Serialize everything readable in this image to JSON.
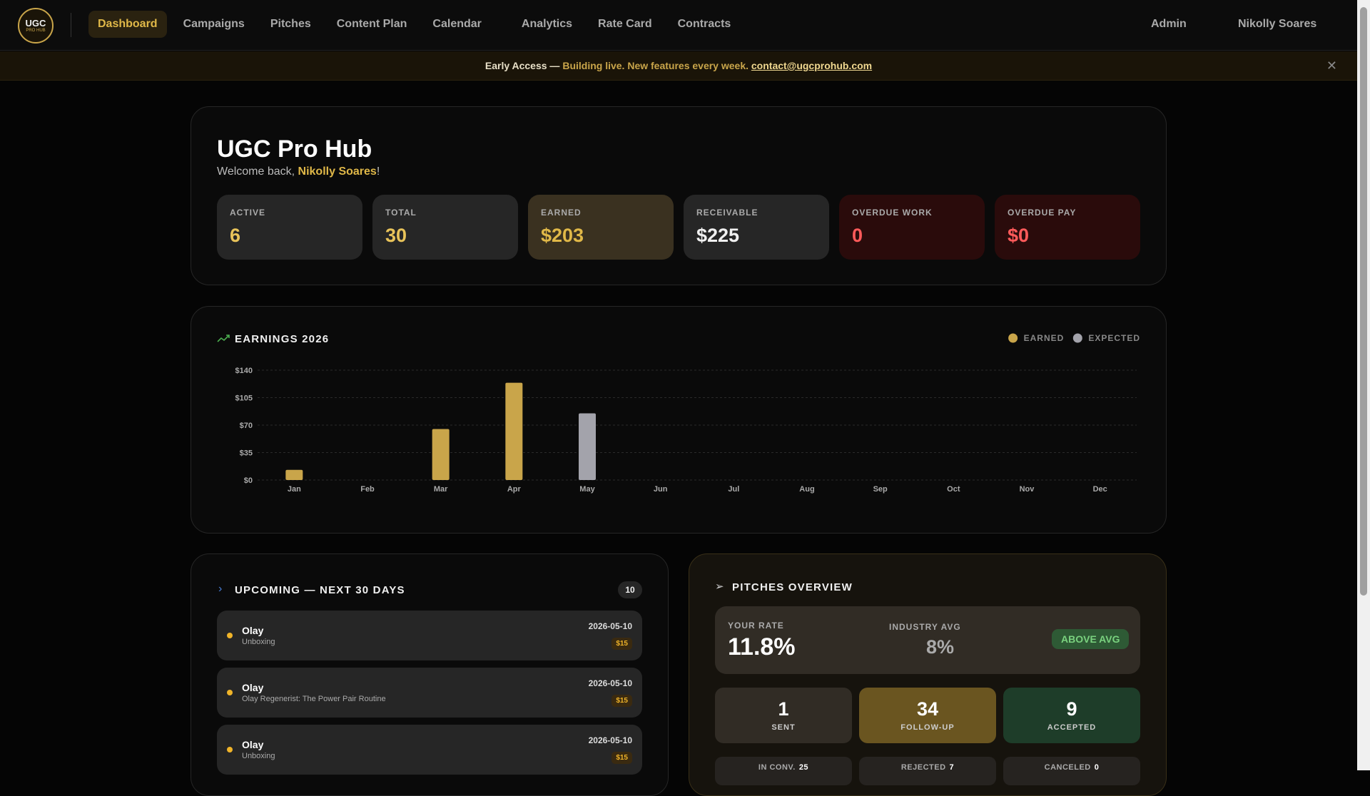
{
  "nav": {
    "logo": "UGC",
    "logo_sub": "PRO HUB",
    "items": [
      "Dashboard",
      "Campaigns",
      "Pitches",
      "Content Plan",
      "Calendar",
      "Analytics",
      "Rate Card",
      "Contracts"
    ],
    "admin": "Admin",
    "user": "Nikolly Soares"
  },
  "banner": {
    "label": "Early Access —",
    "text": "Building live. New features every week.",
    "link": "contact@ugcprohub.com"
  },
  "header": {
    "title": "UGC Pro Hub",
    "welcome": "Welcome back,",
    "name": "Nikolly Soares",
    "punct": "!"
  },
  "stats": [
    {
      "label": "ACTIVE",
      "value": 6
    },
    {
      "label": "TOTAL",
      "value": 30
    },
    {
      "label": "EARNED",
      "value": "$203"
    },
    {
      "label": "RECEIVABLE",
      "value": "$225"
    },
    {
      "label": "OVERDUE WORK",
      "value": 0
    },
    {
      "label": "OVERDUE PAY",
      "value": "$0"
    }
  ],
  "earnings": {
    "type": "bar",
    "title": "EARNINGS 2026",
    "categories": [
      "Jan",
      "Feb",
      "Mar",
      "Apr",
      "May",
      "Jun",
      "Jul",
      "Aug",
      "Sep",
      "Oct",
      "Nov",
      "Dec"
    ],
    "series": [
      {
        "name": "EARNED",
        "color": "#c9a54a",
        "values": [
          13,
          0,
          65,
          124,
          0,
          0,
          0,
          0,
          0,
          0,
          0,
          0
        ]
      },
      {
        "name": "EXPECTED",
        "color": "#a3a3ab",
        "values": [
          0,
          0,
          0,
          0,
          85,
          0,
          0,
          0,
          0,
          0,
          0,
          0
        ]
      }
    ],
    "ylim": [
      0,
      140
    ],
    "yticks": [
      {
        "value": 0,
        "label": "$0"
      },
      {
        "value": 35,
        "label": "$35"
      },
      {
        "value": 70,
        "label": "$70"
      },
      {
        "value": 105,
        "label": "$105"
      },
      {
        "value": 140,
        "label": "$140"
      }
    ],
    "grid": true,
    "legend": "top-right"
  },
  "upcoming": {
    "title": "UPCOMING — NEXT 30 DAYS",
    "count": 10,
    "items": [
      {
        "brand": "Olay",
        "task": "Unboxing",
        "date": "2026-05-10",
        "amount": "$15"
      },
      {
        "brand": "Olay",
        "task": "Olay Regenerist: The Power Pair Routine",
        "date": "2026-05-10",
        "amount": "$15"
      },
      {
        "brand": "Olay",
        "task": "Unboxing",
        "date": "2026-05-10",
        "amount": "$15"
      }
    ]
  },
  "pitches": {
    "title": "PITCHES OVERVIEW",
    "rate_label": "YOUR RATE",
    "rate": "11.8%",
    "industry_label": "INDUSTRY AVG",
    "industry": "8%",
    "badge": "ABOVE AVG",
    "stats": [
      {
        "value": 1,
        "label": "SENT"
      },
      {
        "value": 34,
        "label": "FOLLOW-UP"
      },
      {
        "value": 9,
        "label": "ACCEPTED"
      }
    ],
    "mini": [
      {
        "label": "IN CONV.",
        "value": 25
      },
      {
        "label": "REJECTED",
        "value": 7
      },
      {
        "label": "CANCELED",
        "value": 0
      }
    ]
  }
}
